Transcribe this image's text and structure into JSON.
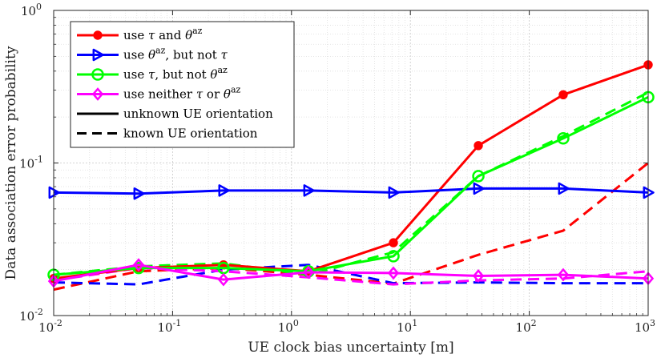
{
  "chart_data": {
    "type": "line",
    "title": "",
    "xlabel": "UE clock bias uncertainty [m]",
    "ylabel": "Data association error probability",
    "xscale": "log",
    "yscale": "log",
    "xlim": [
      0.01,
      1000
    ],
    "ylim": [
      0.01,
      1
    ],
    "grid": true,
    "legend_position": "top-left",
    "x_ticks": [
      {
        "base": "10",
        "exp": "-2",
        "value": 0.01
      },
      {
        "base": "10",
        "exp": "-1",
        "value": 0.1
      },
      {
        "base": "10",
        "exp": "0",
        "value": 1
      },
      {
        "base": "10",
        "exp": "1",
        "value": 10
      },
      {
        "base": "10",
        "exp": "2",
        "value": 100
      },
      {
        "base": "10",
        "exp": "3",
        "value": 1000
      }
    ],
    "y_ticks": [
      {
        "base": "10",
        "exp": "-2",
        "value": 0.01
      },
      {
        "base": "10",
        "exp": "-1",
        "value": 0.1
      },
      {
        "base": "10",
        "exp": "0",
        "value": 1
      }
    ],
    "x": [
      0.01,
      0.0518,
      0.268,
      1.39,
      7.2,
      37.3,
      193,
      1000
    ],
    "legend": [
      {
        "label": "use τ and θ^az",
        "parts": [
          "use ",
          "τ",
          " and ",
          "θ",
          "az"
        ],
        "color": "#ff0000",
        "marker": "dot",
        "dash": "solid"
      },
      {
        "label": "use θ^az, but not τ",
        "parts": [
          "use ",
          "θ",
          "az",
          ", but not ",
          "τ"
        ],
        "color": "#0000ff",
        "marker": "triangle-right",
        "dash": "solid"
      },
      {
        "label": "use τ, but not θ^az",
        "parts": [
          "use ",
          "τ",
          ", but not ",
          "θ",
          "az"
        ],
        "color": "#00ff00",
        "marker": "circle",
        "dash": "solid"
      },
      {
        "label": "use neither τ or θ^az",
        "parts": [
          "use neither ",
          "τ",
          " or ",
          "θ",
          "az"
        ],
        "color": "#ff00ff",
        "marker": "diamond",
        "dash": "solid"
      },
      {
        "label": "unknown UE orientation",
        "color": "#000000",
        "marker": "none",
        "dash": "solid"
      },
      {
        "label": "known UE orientation",
        "color": "#000000",
        "marker": "none",
        "dash": "dashed"
      }
    ],
    "series": [
      {
        "name": "use τ and θ^az (unknown UE orientation)",
        "color": "#ff0000",
        "marker": "dot",
        "dash": "solid",
        "values": [
          0.0175,
          0.0205,
          0.0215,
          0.0195,
          0.03,
          0.13,
          0.28,
          0.44
        ]
      },
      {
        "name": "use τ and θ^az (known UE orientation)",
        "color": "#ff0000",
        "marker": "none",
        "dash": "dashed",
        "values": [
          0.0148,
          0.0195,
          0.0205,
          0.0185,
          0.0162,
          0.025,
          0.036,
          0.1
        ]
      },
      {
        "name": "use θ^az, but not τ (unknown UE orientation)",
        "color": "#0000ff",
        "marker": "triangle-right",
        "dash": "solid",
        "values": [
          0.064,
          0.063,
          0.066,
          0.066,
          0.064,
          0.068,
          0.068,
          0.064
        ]
      },
      {
        "name": "use θ^az, but not τ (known UE orientation)",
        "color": "#0000ff",
        "marker": "none",
        "dash": "dashed",
        "values": [
          0.0165,
          0.016,
          0.02,
          0.0215,
          0.0163,
          0.0165,
          0.0163,
          0.0163
        ]
      },
      {
        "name": "use τ, but not θ^az (unknown UE orientation)",
        "color": "#00ff00",
        "marker": "circle",
        "dash": "solid",
        "values": [
          0.0185,
          0.0205,
          0.0205,
          0.0195,
          0.0245,
          0.082,
          0.145,
          0.27
        ]
      },
      {
        "name": "use τ, but not θ^az (known UE orientation)",
        "color": "#00ff00",
        "marker": "none",
        "dash": "dashed",
        "values": [
          0.0185,
          0.021,
          0.022,
          0.0185,
          0.026,
          0.082,
          0.15,
          0.29
        ]
      },
      {
        "name": "use neither τ or θ^az (unknown UE orientation)",
        "color": "#ff00ff",
        "marker": "diamond",
        "dash": "solid",
        "values": [
          0.0168,
          0.0215,
          0.0172,
          0.0192,
          0.019,
          0.0182,
          0.0185,
          0.0175
        ]
      },
      {
        "name": "use neither τ or θ^az (known UE orientation)",
        "color": "#ff00ff",
        "marker": "none",
        "dash": "dashed",
        "values": [
          0.017,
          0.0205,
          0.0195,
          0.0178,
          0.016,
          0.017,
          0.0175,
          0.0195
        ]
      }
    ]
  }
}
